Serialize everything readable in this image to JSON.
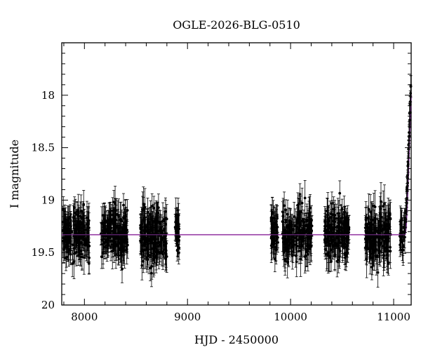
{
  "chart_data": {
    "type": "scatter",
    "title": "OGLE-2026-BLG-0510",
    "xlabel": "HJD - 2450000",
    "ylabel": "I magnitude",
    "xlim": [
      7780,
      11170
    ],
    "ylim": [
      20,
      17.5
    ],
    "y_inverted": true,
    "grid": false,
    "xticks": [
      8000,
      9000,
      10000,
      11000
    ],
    "xtick_labels": [
      "8000",
      "9000",
      "10000",
      "11000"
    ],
    "yticks": [
      18,
      18.5,
      19,
      19.5,
      20
    ],
    "ytick_labels": [
      "18",
      "18.5",
      "19",
      "19.5",
      "20"
    ],
    "colors": {
      "points": "#000000",
      "model_baseline": "#e37be0",
      "model_rise": "#7a2f8f"
    },
    "series": [
      {
        "kind": "photometry",
        "seasons": [
          {
            "x_start": 7790,
            "x_end": 8050,
            "mean_mag": 19.33,
            "scatter": 0.2,
            "err": 0.13,
            "n": 170
          },
          {
            "x_start": 8160,
            "x_end": 8420,
            "mean_mag": 19.3,
            "scatter": 0.21,
            "err": 0.13,
            "n": 170
          },
          {
            "x_start": 8540,
            "x_end": 8800,
            "mean_mag": 19.34,
            "scatter": 0.21,
            "err": 0.14,
            "n": 170
          },
          {
            "x_start": 8880,
            "x_end": 8920,
            "mean_mag": 19.33,
            "scatter": 0.18,
            "err": 0.13,
            "n": 28
          },
          {
            "x_start": 9810,
            "x_end": 9880,
            "mean_mag": 19.3,
            "scatter": 0.2,
            "err": 0.13,
            "n": 45
          },
          {
            "x_start": 9920,
            "x_end": 10210,
            "mean_mag": 19.33,
            "scatter": 0.21,
            "err": 0.13,
            "n": 170
          },
          {
            "x_start": 10330,
            "x_end": 10570,
            "mean_mag": 19.33,
            "scatter": 0.21,
            "err": 0.13,
            "n": 160
          },
          {
            "x_start": 10720,
            "x_end": 10970,
            "mean_mag": 19.33,
            "scatter": 0.22,
            "err": 0.14,
            "n": 165
          },
          {
            "x_start": 11060,
            "x_end": 11110,
            "mean_mag": 19.34,
            "scatter": 0.18,
            "err": 0.12,
            "n": 25
          }
        ],
        "rise_points": [
          {
            "x": 11115,
            "y": 19.2
          },
          {
            "x": 11120,
            "y": 19.1
          },
          {
            "x": 11125,
            "y": 19.0
          },
          {
            "x": 11130,
            "y": 18.9
          },
          {
            "x": 11135,
            "y": 18.8
          },
          {
            "x": 11140,
            "y": 18.65
          },
          {
            "x": 11145,
            "y": 18.5
          },
          {
            "x": 11150,
            "y": 18.35
          },
          {
            "x": 11155,
            "y": 18.2
          },
          {
            "x": 11160,
            "y": 18.05
          },
          {
            "x": 11165,
            "y": 17.95
          }
        ]
      },
      {
        "kind": "model",
        "baseline_mag": 19.33,
        "baseline_x": [
          7780,
          11110
        ],
        "rise": [
          {
            "x": 11110,
            "y": 19.33
          },
          {
            "x": 11120,
            "y": 19.25
          },
          {
            "x": 11130,
            "y": 19.05
          },
          {
            "x": 11140,
            "y": 18.8
          },
          {
            "x": 11150,
            "y": 18.5
          },
          {
            "x": 11160,
            "y": 18.2
          },
          {
            "x": 11168,
            "y": 18.0
          }
        ]
      }
    ]
  }
}
